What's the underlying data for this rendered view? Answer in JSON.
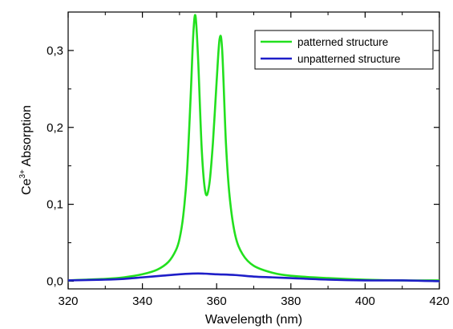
{
  "chart_data": {
    "type": "line",
    "xlabel": "Wavelength (nm)",
    "ylabel": {
      "prefix": "Ce",
      "superscript": "3+",
      "suffix": " Absorption"
    },
    "xlim": [
      320,
      420
    ],
    "ylim": [
      -0.01,
      0.35
    ],
    "x_ticks": [
      320,
      340,
      360,
      380,
      400,
      420
    ],
    "x_tick_labels": [
      "320",
      "340",
      "360",
      "380",
      "400",
      "420"
    ],
    "y_ticks": [
      0.0,
      0.1,
      0.2,
      0.3
    ],
    "y_tick_labels": [
      "0,0",
      "0,1",
      "0,2",
      "0,3"
    ],
    "legend_position": "top-right",
    "series": [
      {
        "name": "patterned structure",
        "color": "#22e01e",
        "x": [
          320,
          325,
          330,
          335,
          340,
          344,
          347,
          349,
          350,
          351,
          352,
          353,
          353.7,
          354.3,
          355,
          356,
          357,
          358,
          359,
          360,
          360.8,
          361.5,
          362.5,
          363.5,
          365,
          367,
          370,
          375,
          380,
          390,
          400,
          410,
          420
        ],
        "values": [
          0.001,
          0.002,
          0.003,
          0.005,
          0.009,
          0.015,
          0.025,
          0.04,
          0.055,
          0.085,
          0.14,
          0.24,
          0.32,
          0.345,
          0.29,
          0.17,
          0.115,
          0.125,
          0.18,
          0.26,
          0.315,
          0.3,
          0.18,
          0.11,
          0.06,
          0.035,
          0.02,
          0.011,
          0.007,
          0.004,
          0.002,
          0.001,
          0.001
        ]
      },
      {
        "name": "unpatterned structure",
        "color": "#1e1ec8",
        "x": [
          320,
          330,
          335,
          340,
          345,
          350,
          355,
          360,
          365,
          370,
          375,
          380,
          390,
          400,
          410,
          420
        ],
        "values": [
          0.001,
          0.002,
          0.003,
          0.005,
          0.007,
          0.009,
          0.01,
          0.009,
          0.008,
          0.006,
          0.005,
          0.004,
          0.002,
          0.001,
          0.001,
          0.0
        ]
      }
    ]
  }
}
